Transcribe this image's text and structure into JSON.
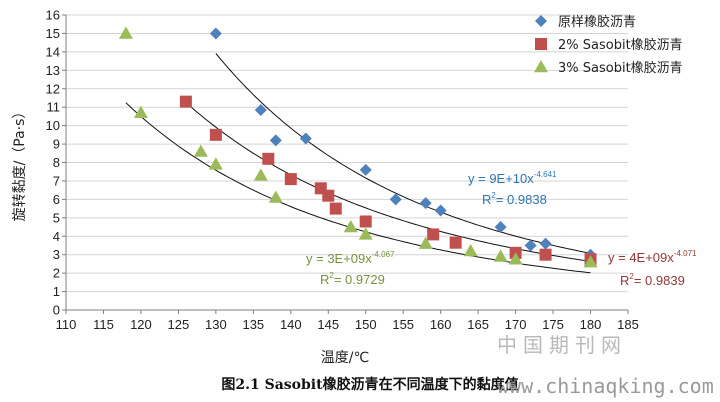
{
  "chart_data": {
    "type": "scatter",
    "xlabel": "温度/℃",
    "ylabel": "旋转黏度/（Pa·s）",
    "xlim": [
      110,
      185
    ],
    "ylim": [
      0,
      16
    ],
    "x_ticks": [
      110,
      115,
      120,
      125,
      130,
      135,
      140,
      145,
      150,
      155,
      160,
      165,
      170,
      175,
      180,
      185
    ],
    "y_ticks": [
      0,
      1,
      2,
      3,
      4,
      5,
      6,
      7,
      8,
      9,
      10,
      11,
      12,
      13,
      14,
      15,
      16
    ],
    "grid": "horizontal",
    "legend_position": "top-right",
    "series": [
      {
        "name": "原样橡胶沥青",
        "marker": "diamond",
        "color": "#4F81BD",
        "points": [
          [
            130,
            15.0
          ],
          [
            136,
            10.85
          ],
          [
            138,
            9.2
          ],
          [
            142,
            9.3
          ],
          [
            150,
            7.6
          ],
          [
            154,
            6.0
          ],
          [
            158,
            5.8
          ],
          [
            160,
            5.4
          ],
          [
            168,
            4.5
          ],
          [
            172,
            3.5
          ],
          [
            174,
            3.6
          ],
          [
            180,
            3.0
          ]
        ],
        "trendline": {
          "a": 90000000000.0,
          "b": -4.641,
          "x_range": [
            130,
            180
          ]
        },
        "equation": "y = 9E+10x",
        "exponent": "-4.641",
        "r2_label": "R",
        "r2_value": "= 0.9838",
        "label_color": "#2E75B6"
      },
      {
        "name": "2% Sasobit橡胶沥青",
        "marker": "square",
        "color": "#C0504D",
        "points": [
          [
            126,
            11.3
          ],
          [
            130,
            9.5
          ],
          [
            137,
            8.2
          ],
          [
            140,
            7.1
          ],
          [
            144,
            6.6
          ],
          [
            145,
            6.2
          ],
          [
            146,
            5.5
          ],
          [
            150,
            4.8
          ],
          [
            159,
            4.1
          ],
          [
            162,
            3.65
          ],
          [
            170,
            3.1
          ],
          [
            174,
            3.0
          ],
          [
            180,
            2.75
          ]
        ],
        "trendline": {
          "a": 4000000000.0,
          "b": -4.071,
          "x_range": [
            126,
            180
          ]
        },
        "equation": "y = 4E+09x",
        "exponent": "-4.071",
        "r2_label": "R",
        "r2_value": "= 0.9839",
        "label_color": "#953735"
      },
      {
        "name": "3% Sasobit橡胶沥青",
        "marker": "triangle",
        "color": "#9BBB59",
        "points": [
          [
            118,
            15.0
          ],
          [
            120,
            10.7
          ],
          [
            128,
            8.6
          ],
          [
            130,
            7.9
          ],
          [
            136,
            7.3
          ],
          [
            138,
            6.1
          ],
          [
            148,
            4.5
          ],
          [
            150,
            4.1
          ],
          [
            158,
            3.6
          ],
          [
            164,
            3.2
          ],
          [
            168,
            2.9
          ],
          [
            170,
            2.75
          ],
          [
            180,
            2.6
          ]
        ],
        "trendline": {
          "a": 3000000000.0,
          "b": -4.067,
          "x_range": [
            118,
            180
          ]
        },
        "equation": "y = 3E+09x",
        "exponent": "-4.067",
        "r2_label": "R",
        "r2_value": "= 0.9729",
        "label_color": "#77933C"
      }
    ]
  },
  "caption": "图2.1   Sasobit橡胶沥青在不同温度下的黏度值",
  "watermark": {
    "cn": "中国期刊网",
    "url": "www.chinaqking.com"
  }
}
